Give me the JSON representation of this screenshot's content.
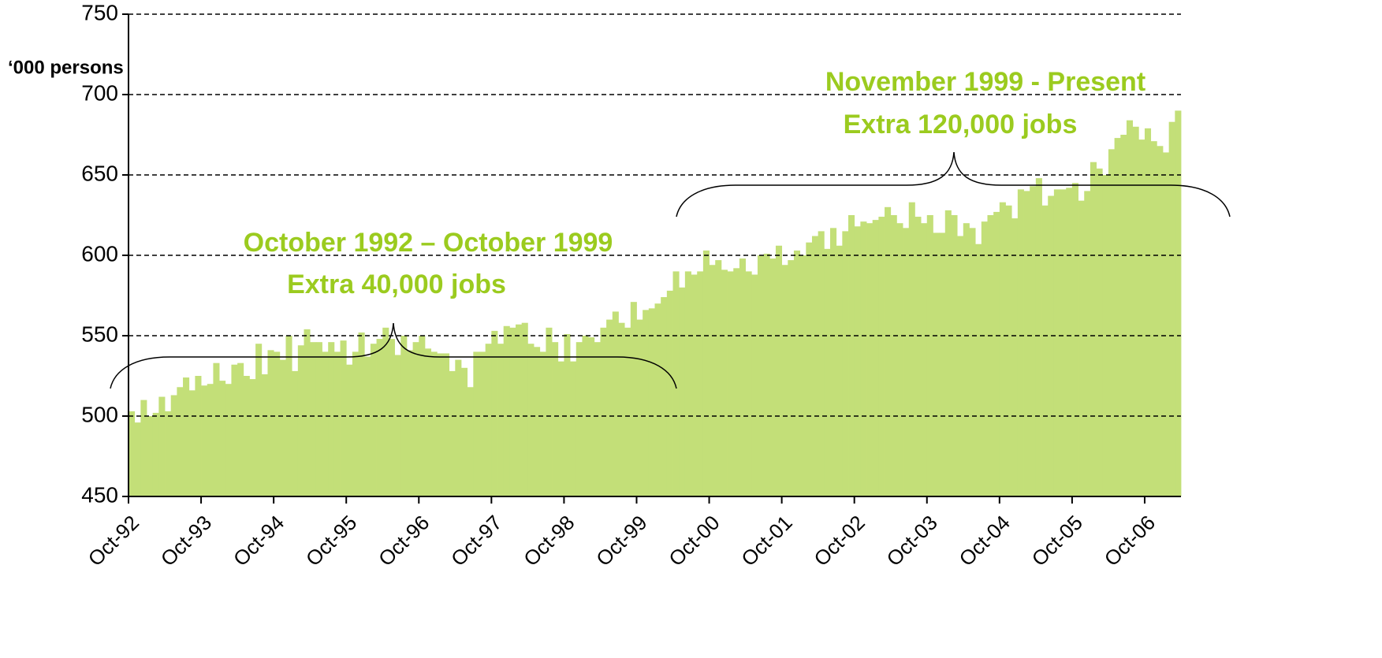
{
  "chart_data": {
    "type": "bar",
    "y_axis_label": "‘000 persons",
    "annotations": [
      "October 1992 – October 1999",
      "Extra 40,000 jobs",
      "November 1999 - Present",
      "Extra 120,000 jobs"
    ],
    "categories": [
      "Oct-92",
      null,
      null,
      null,
      null,
      null,
      null,
      null,
      null,
      null,
      null,
      null,
      "Oct-93",
      null,
      null,
      null,
      null,
      null,
      null,
      null,
      null,
      null,
      null,
      null,
      "Oct-94",
      null,
      null,
      null,
      null,
      null,
      null,
      null,
      null,
      null,
      null,
      null,
      "Oct-95",
      null,
      null,
      null,
      null,
      null,
      null,
      null,
      null,
      null,
      null,
      null,
      "Oct-96",
      null,
      null,
      null,
      null,
      null,
      null,
      null,
      null,
      null,
      null,
      null,
      "Oct-97",
      null,
      null,
      null,
      null,
      null,
      null,
      null,
      null,
      null,
      null,
      null,
      "Oct-98",
      null,
      null,
      null,
      null,
      null,
      null,
      null,
      null,
      null,
      null,
      null,
      "Oct-99",
      null,
      null,
      null,
      null,
      null,
      null,
      null,
      null,
      null,
      null,
      null,
      "Oct-00",
      null,
      null,
      null,
      null,
      null,
      null,
      null,
      null,
      null,
      null,
      null,
      "Oct-01",
      null,
      null,
      null,
      null,
      null,
      null,
      null,
      null,
      null,
      null,
      null,
      "Oct-02",
      null,
      null,
      null,
      null,
      null,
      null,
      null,
      null,
      null,
      null,
      null,
      "Oct-03",
      null,
      null,
      null,
      null,
      null,
      null,
      null,
      null,
      null,
      null,
      null,
      "Oct-04",
      null,
      null,
      null,
      null,
      null,
      null,
      null,
      null,
      null,
      null,
      null,
      "Oct-05",
      null,
      null,
      null,
      null,
      null,
      null,
      null,
      null,
      null,
      null,
      null,
      "Oct-06",
      null,
      null,
      null,
      null,
      null
    ],
    "values": [
      503,
      496,
      510,
      500,
      502,
      512,
      503,
      513,
      518,
      524,
      516,
      525,
      519,
      520,
      533,
      522,
      520,
      532,
      533,
      525,
      523,
      545,
      526,
      541,
      540,
      535,
      550,
      528,
      544,
      554,
      546,
      546,
      540,
      546,
      540,
      547,
      532,
      540,
      552,
      537,
      545,
      548,
      555,
      548,
      538,
      550,
      541,
      546,
      550,
      542,
      540,
      539,
      539,
      528,
      535,
      530,
      518,
      540,
      540,
      545,
      553,
      545,
      556,
      555,
      557,
      558,
      545,
      543,
      540,
      555,
      546,
      534,
      551,
      534,
      546,
      550,
      549,
      546,
      555,
      560,
      565,
      558,
      555,
      571,
      560,
      566,
      567,
      570,
      574,
      578,
      590,
      580,
      590,
      588,
      590,
      603,
      594,
      597,
      591,
      590,
      592,
      598,
      590,
      588,
      600,
      601,
      598,
      606,
      594,
      597,
      603,
      600,
      608,
      612,
      615,
      604,
      617,
      606,
      615,
      625,
      618,
      621,
      620,
      622,
      624,
      630,
      625,
      620,
      617,
      633,
      624,
      620,
      625,
      614,
      614,
      628,
      625,
      612,
      620,
      617,
      607,
      621,
      625,
      627,
      633,
      631,
      623,
      641,
      640,
      643,
      648,
      631,
      637,
      641,
      641,
      642,
      645,
      634,
      640,
      658,
      654,
      650,
      666,
      673,
      675,
      684,
      680,
      672,
      679,
      671,
      668,
      664,
      683,
      690
    ],
    "color": "#c3df78",
    "annotation_color": "#9bcb1f",
    "ylim": [
      450,
      750
    ],
    "yticks": [
      450,
      500,
      550,
      600,
      650,
      700,
      750
    ],
    "grid": true
  }
}
